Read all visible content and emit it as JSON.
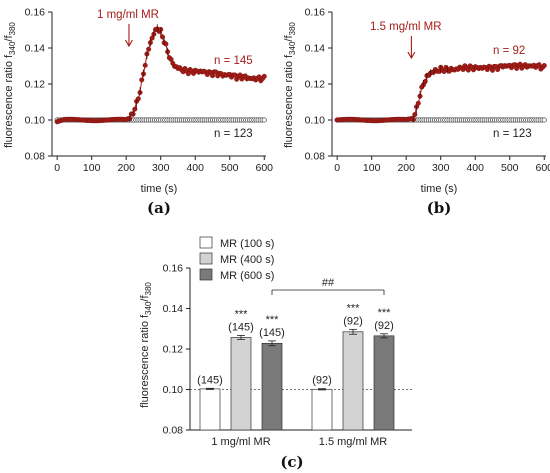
{
  "colors": {
    "red": "#a51c17",
    "dark_gray": "#7a7a7a",
    "light_gray": "#d3d3d3",
    "white": "#ffffff",
    "axis": "#222222"
  },
  "chart_data": [
    {
      "type": "line",
      "panel_label": "(a)",
      "xlabel": "time (s)",
      "ylabel": "fluorescence ratio f340/f380",
      "xlim": [
        -15,
        605
      ],
      "ylim": [
        0.08,
        0.16
      ],
      "xticks": [
        "0",
        "100",
        "200",
        "300",
        "400",
        "500",
        "600"
      ],
      "yticks": [
        "0.08",
        "0.10",
        "0.12",
        "0.14",
        "0.16"
      ],
      "annotation": "1 mg/ml MR",
      "stimulus_time": 208,
      "series": [
        {
          "name": "n = 145",
          "color": "#a51c17",
          "marker": "filled-circle",
          "x": [
            0,
            20,
            40,
            60,
            80,
            100,
            120,
            140,
            160,
            180,
            200,
            210,
            220,
            230,
            240,
            250,
            260,
            270,
            280,
            290,
            300,
            310,
            320,
            330,
            340,
            360,
            380,
            400,
            420,
            440,
            460,
            480,
            500,
            520,
            540,
            560,
            580,
            600
          ],
          "y": [
            0.099,
            0.1,
            0.1,
            0.1,
            0.1,
            0.1,
            0.1,
            0.1,
            0.1,
            0.1,
            0.1,
            0.101,
            0.104,
            0.109,
            0.116,
            0.126,
            0.136,
            0.143,
            0.148,
            0.151,
            0.149,
            0.144,
            0.138,
            0.133,
            0.13,
            0.128,
            0.127,
            0.127,
            0.127,
            0.126,
            0.126,
            0.125,
            0.125,
            0.124,
            0.124,
            0.123,
            0.123,
            0.123
          ]
        },
        {
          "name": "n = 123",
          "color": "#ffffff",
          "marker": "open-circle",
          "x": [
            0,
            30,
            60,
            90,
            120,
            150,
            180,
            210,
            240,
            270,
            300,
            330,
            360,
            390,
            420,
            450,
            480,
            510,
            540,
            570,
            600
          ],
          "y": [
            0.1,
            0.1,
            0.1,
            0.1,
            0.1,
            0.1,
            0.1,
            0.1,
            0.1,
            0.1,
            0.1,
            0.1,
            0.1,
            0.1,
            0.1,
            0.1,
            0.1,
            0.1,
            0.1,
            0.1,
            0.1
          ]
        }
      ]
    },
    {
      "type": "line",
      "panel_label": "(b)",
      "xlabel": "time (s)",
      "ylabel": "fluorescence ratio f340/f380",
      "xlim": [
        -15,
        605
      ],
      "ylim": [
        0.08,
        0.16
      ],
      "xticks": [
        "0",
        "100",
        "200",
        "300",
        "400",
        "500",
        "600"
      ],
      "yticks": [
        "0.08",
        "0.10",
        "0.12",
        "0.14",
        "0.16"
      ],
      "annotation": "1.5 mg/ml MR",
      "stimulus_time": 215,
      "series": [
        {
          "name": "n = 92",
          "color": "#a51c17",
          "marker": "filled-circle",
          "x": [
            0,
            20,
            40,
            60,
            80,
            100,
            120,
            140,
            160,
            180,
            200,
            220,
            230,
            240,
            250,
            260,
            270,
            280,
            300,
            320,
            340,
            360,
            380,
            400,
            420,
            440,
            460,
            480,
            500,
            520,
            540,
            560,
            580,
            600
          ],
          "y": [
            0.1,
            0.1,
            0.1,
            0.1,
            0.1,
            0.1,
            0.1,
            0.1,
            0.1,
            0.1,
            0.1,
            0.101,
            0.106,
            0.114,
            0.12,
            0.124,
            0.126,
            0.127,
            0.128,
            0.128,
            0.128,
            0.129,
            0.129,
            0.129,
            0.129,
            0.129,
            0.129,
            0.13,
            0.13,
            0.13,
            0.13,
            0.13,
            0.13,
            0.129
          ]
        },
        {
          "name": "n = 123",
          "color": "#ffffff",
          "marker": "open-circle",
          "x": [
            0,
            30,
            60,
            90,
            120,
            150,
            180,
            210,
            240,
            270,
            300,
            330,
            360,
            390,
            420,
            450,
            480,
            510,
            540,
            570,
            600
          ],
          "y": [
            0.1,
            0.1,
            0.1,
            0.1,
            0.1,
            0.1,
            0.1,
            0.1,
            0.1,
            0.1,
            0.1,
            0.1,
            0.1,
            0.1,
            0.1,
            0.1,
            0.1,
            0.1,
            0.1,
            0.1,
            0.1
          ]
        }
      ]
    },
    {
      "type": "bar",
      "panel_label": "(c)",
      "ylabel": "fluorescence ratio f340/f380",
      "ylim": [
        0.08,
        0.16
      ],
      "yticks": [
        "0.08",
        "0.10",
        "0.12",
        "0.14",
        "0.16"
      ],
      "categories": [
        "1 mg/ml MR",
        "1.5 mg/ml MR"
      ],
      "baseline": 0.1,
      "legend": [
        "MR (100 s)",
        "MR (400 s)",
        "MR (600 s)"
      ],
      "significance_bracket": "##",
      "series": [
        {
          "name": "MR (100 s)",
          "color": "#ffffff",
          "values": [
            0.1003,
            0.1001
          ],
          "errors": [
            0.0003,
            0.0003
          ],
          "labels": [
            "(145)",
            "(92)"
          ],
          "stars": [
            "",
            ""
          ]
        },
        {
          "name": "MR (400 s)",
          "color": "#d3d3d3",
          "values": [
            0.1257,
            0.1285
          ],
          "errors": [
            0.001,
            0.0012
          ],
          "labels": [
            "(145)",
            "(92)"
          ],
          "stars": [
            "***",
            "***"
          ]
        },
        {
          "name": "MR (600 s)",
          "color": "#7a7a7a",
          "values": [
            0.1228,
            0.1265
          ],
          "errors": [
            0.0012,
            0.001
          ],
          "labels": [
            "(145)",
            "(92)"
          ],
          "stars": [
            "***",
            "***"
          ]
        }
      ]
    }
  ]
}
